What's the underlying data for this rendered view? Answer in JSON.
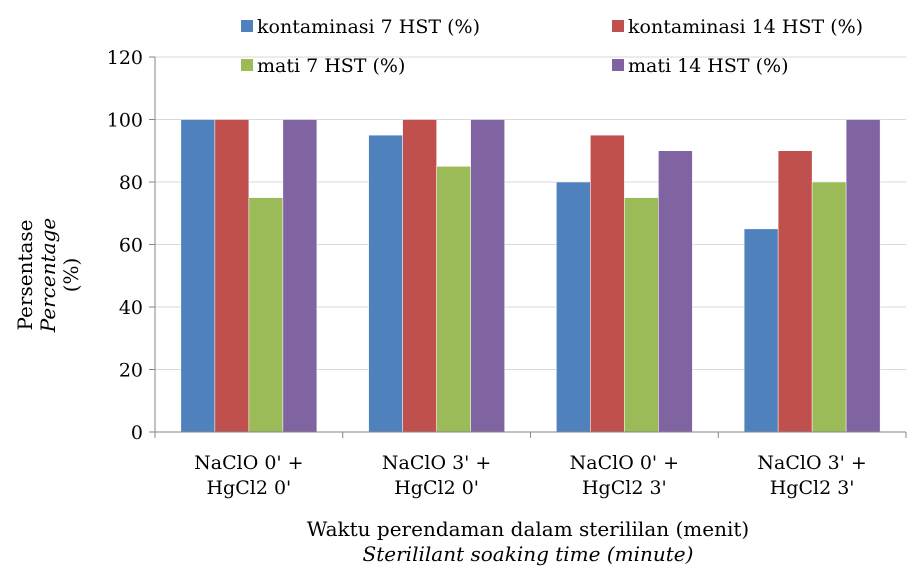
{
  "chart_data": {
    "type": "bar",
    "categories": [
      [
        "NaClO 0' +",
        "HgCl2 0'"
      ],
      [
        "NaClO 3' +",
        "HgCl2 0'"
      ],
      [
        "NaClO 0' +",
        "HgCl2 3'"
      ],
      [
        "NaClO 3' +",
        "HgCl2 3'"
      ]
    ],
    "series": [
      {
        "name": "kontaminasi 7 HST (%)",
        "color": "#4F81BD",
        "values": [
          100,
          95,
          80,
          65
        ]
      },
      {
        "name": "kontaminasi 14 HST (%)",
        "color": "#C0504D",
        "values": [
          100,
          100,
          95,
          90
        ]
      },
      {
        "name": "mati 7 HST (%)",
        "color": "#9BBB59",
        "values": [
          75,
          85,
          75,
          80
        ]
      },
      {
        "name": "mati 14 HST (%)",
        "color": "#8064A2",
        "values": [
          100,
          100,
          90,
          100
        ]
      }
    ],
    "ylim": [
      0,
      120
    ],
    "yticks": [
      0,
      20,
      40,
      60,
      80,
      100,
      120
    ],
    "ylabel": [
      "Persentase",
      "Percentage",
      "(%)"
    ],
    "xlabel": [
      "Waktu perendaman dalam sterililan (menit)",
      "Sterililant soaking time (minute)"
    ],
    "gridlines": true,
    "legend_position": "top"
  }
}
